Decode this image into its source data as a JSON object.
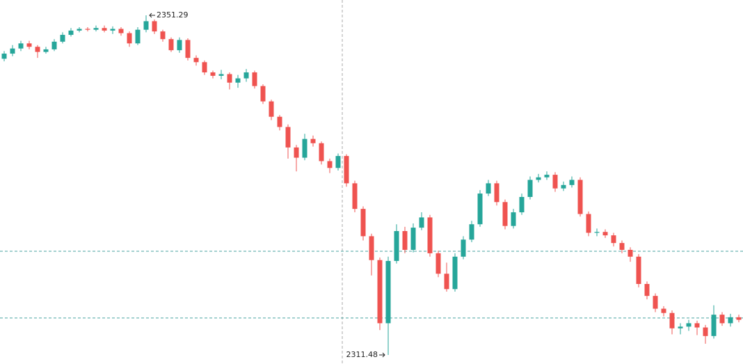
{
  "chart_data": {
    "type": "candlestick",
    "up_color": "#26a69a",
    "down_color": "#ef5350",
    "hline_color": "#4aa3a0",
    "hlines": [
      2323.64,
      2315.81
    ],
    "open": [
      2346.2,
      2346.8,
      2347.4,
      2348.0,
      2347.6,
      2347.0,
      2347.3,
      2348.2,
      2349.0,
      2349.5,
      2349.7,
      2349.6,
      2349.8,
      2349.5,
      2349.7,
      2349.2,
      2348.0,
      2349.6,
      2350.6,
      2349.4,
      2348.5,
      2347.2,
      2348.4,
      2346.3,
      2345.8,
      2344.6,
      2344.2,
      2344.4,
      2343.4,
      2343.9,
      2344.6,
      2343.0,
      2341.2,
      2339.4,
      2338.2,
      2335.8,
      2334.6,
      2336.8,
      2336.3,
      2334.2,
      2333.4,
      2334.8,
      2331.6,
      2328.6,
      2325.4,
      2322.6,
      2315.2,
      2322.5,
      2326.0,
      2323.8,
      2326.4,
      2327.6,
      2323.4,
      2321.0,
      2319.2,
      2323.0,
      2325.0,
      2326.8,
      2330.4,
      2331.6,
      2329.4,
      2326.6,
      2328.2,
      2330.0,
      2332.0,
      2332.3,
      2332.6,
      2331.0,
      2331.4,
      2332.0,
      2328.0,
      2325.8,
      2325.9,
      2325.5,
      2324.6,
      2323.8,
      2323.0,
      2319.8,
      2318.4,
      2316.9,
      2316.4,
      2314.6,
      2314.8,
      2315.2,
      2314.7,
      2313.7,
      2316.2,
      2315.2,
      2315.9
    ],
    "high": [
      2347.1,
      2347.8,
      2348.3,
      2348.3,
      2347.8,
      2347.6,
      2348.5,
      2349.3,
      2349.8,
      2349.9,
      2349.9,
      2350.1,
      2350.1,
      2350.0,
      2349.9,
      2349.4,
      2349.9,
      2351.29,
      2350.8,
      2349.6,
      2348.7,
      2348.7,
      2348.6,
      2346.6,
      2346.0,
      2344.8,
      2344.9,
      2344.6,
      2344.3,
      2345.0,
      2344.8,
      2343.2,
      2341.4,
      2339.6,
      2338.5,
      2336.1,
      2337.4,
      2337.2,
      2336.5,
      2334.5,
      2335.1,
      2335.0,
      2331.9,
      2328.9,
      2325.7,
      2322.9,
      2323.0,
      2326.8,
      2326.5,
      2326.9,
      2328.2,
      2327.9,
      2323.7,
      2322.3,
      2323.4,
      2325.4,
      2327.2,
      2330.8,
      2332.0,
      2331.9,
      2329.7,
      2328.6,
      2330.4,
      2332.4,
      2332.7,
      2333.0,
      2332.9,
      2331.8,
      2332.4,
      2332.3,
      2328.3,
      2326.3,
      2326.2,
      2325.8,
      2324.9,
      2324.1,
      2323.3,
      2320.1,
      2318.7,
      2317.2,
      2316.7,
      2315.2,
      2315.6,
      2315.5,
      2315.0,
      2317.3,
      2316.5,
      2316.3,
      2316.2
    ],
    "low": [
      2345.9,
      2346.5,
      2347.1,
      2347.3,
      2346.3,
      2346.8,
      2347.1,
      2348.0,
      2348.8,
      2349.3,
      2349.4,
      2349.4,
      2349.3,
      2349.1,
      2348.9,
      2347.6,
      2347.8,
      2349.3,
      2349.1,
      2348.2,
      2347.0,
      2346.9,
      2346.0,
      2345.4,
      2344.3,
      2343.9,
      2343.8,
      2342.6,
      2342.8,
      2343.5,
      2342.7,
      2340.9,
      2339.0,
      2337.8,
      2334.5,
      2333.0,
      2334.3,
      2335.9,
      2333.8,
      2332.8,
      2333.1,
      2331.2,
      2328.2,
      2324.9,
      2320.8,
      2314.4,
      2311.48,
      2322.2,
      2323.4,
      2323.5,
      2326.1,
      2323.0,
      2320.6,
      2318.9,
      2318.9,
      2322.7,
      2324.7,
      2326.5,
      2330.1,
      2329.0,
      2326.2,
      2326.3,
      2327.9,
      2329.7,
      2331.7,
      2332.0,
      2330.6,
      2330.7,
      2331.1,
      2327.7,
      2325.4,
      2325.4,
      2325.2,
      2324.2,
      2323.4,
      2322.4,
      2319.4,
      2318.0,
      2316.5,
      2316.0,
      2313.9,
      2313.9,
      2314.3,
      2313.8,
      2312.8,
      2313.4,
      2314.9,
      2314.8,
      2315.3
    ],
    "close": [
      2346.8,
      2347.4,
      2348.0,
      2347.6,
      2347.0,
      2347.3,
      2348.2,
      2349.0,
      2349.5,
      2349.7,
      2349.6,
      2349.8,
      2349.5,
      2349.7,
      2349.2,
      2348.0,
      2349.6,
      2350.6,
      2349.4,
      2348.5,
      2347.2,
      2348.4,
      2346.3,
      2345.8,
      2344.6,
      2344.2,
      2344.4,
      2343.4,
      2343.9,
      2344.6,
      2343.0,
      2341.2,
      2339.4,
      2338.2,
      2335.8,
      2334.6,
      2336.8,
      2336.3,
      2334.2,
      2333.4,
      2334.8,
      2331.6,
      2328.6,
      2325.4,
      2322.6,
      2315.2,
      2322.5,
      2326.0,
      2323.8,
      2326.4,
      2327.6,
      2323.4,
      2321.0,
      2319.2,
      2323.0,
      2325.0,
      2326.8,
      2330.4,
      2331.6,
      2329.4,
      2326.6,
      2328.2,
      2330.0,
      2332.0,
      2332.3,
      2332.6,
      2331.0,
      2331.4,
      2332.0,
      2328.0,
      2325.8,
      2325.9,
      2325.5,
      2324.6,
      2323.8,
      2323.0,
      2319.8,
      2318.4,
      2316.9,
      2316.4,
      2314.6,
      2314.8,
      2315.2,
      2314.7,
      2313.7,
      2316.2,
      2315.2,
      2315.9,
      2315.6
    ]
  }
}
